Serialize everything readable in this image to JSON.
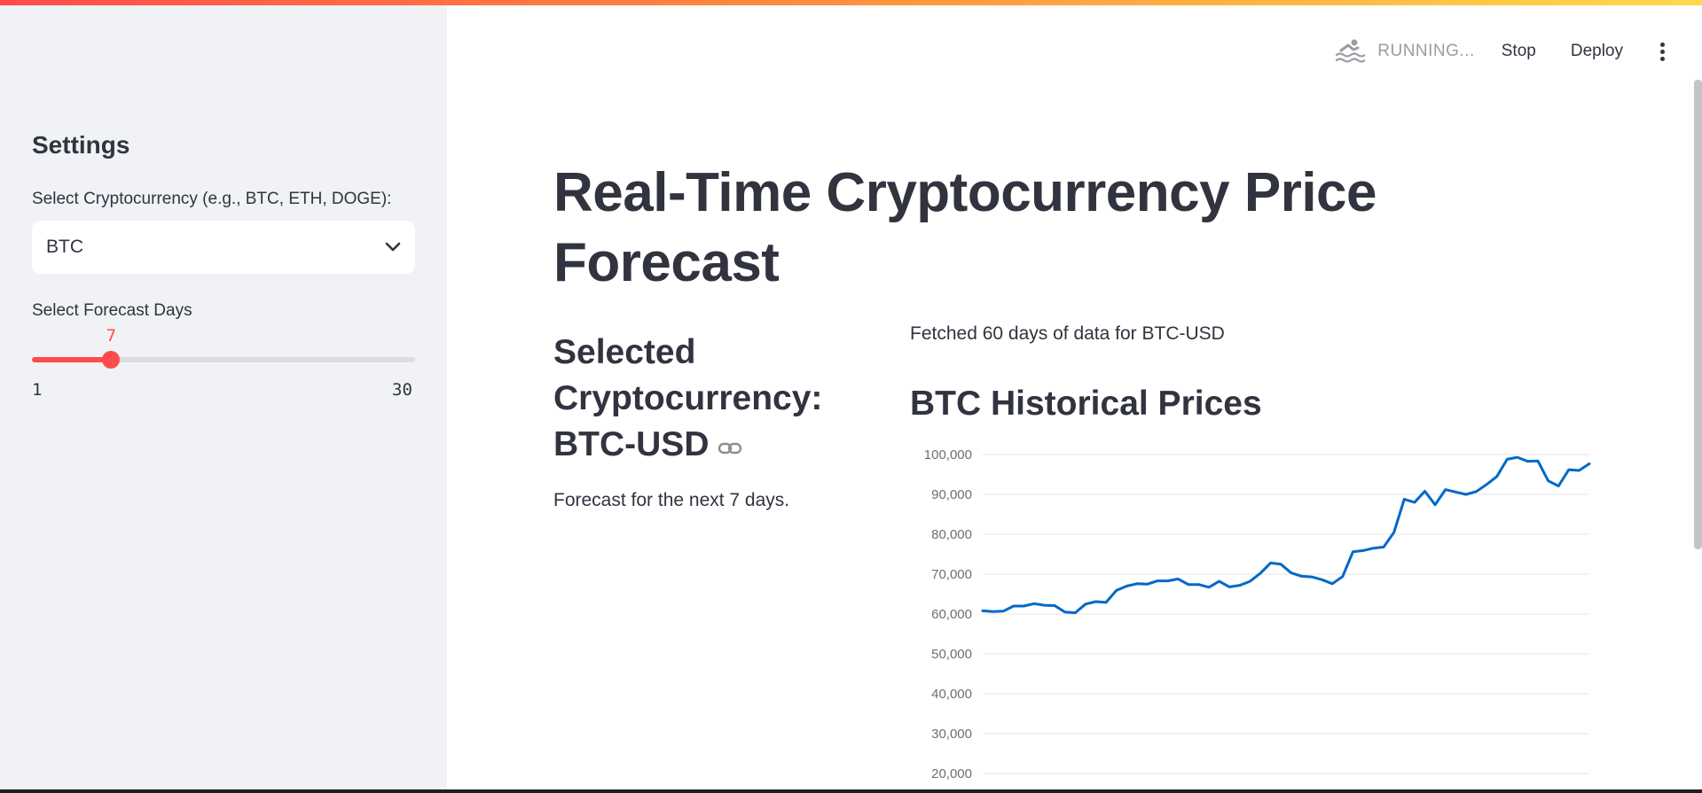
{
  "header": {
    "status": "RUNNING...",
    "stop_label": "Stop",
    "deploy_label": "Deploy",
    "menu_icon": "more-vertical-icon",
    "status_icon": "swimmer-icon"
  },
  "sidebar": {
    "title": "Settings",
    "crypto_label": "Select Cryptocurrency (e.g., BTC, ETH, DOGE):",
    "crypto_value": "BTC",
    "days_label": "Select Forecast Days",
    "slider": {
      "value": 7,
      "min": 1,
      "max": 30,
      "value_text": "7",
      "min_text": "1",
      "max_text": "30"
    }
  },
  "main": {
    "title": "Real-Time Cryptocurrency Price Forecast",
    "selected_heading": "Selected Cryptocurrency: BTC-USD",
    "forecast_text": "Forecast for the next 7 days.",
    "fetched_text": "Fetched 60 days of data for BTC-USD",
    "chart_title": "BTC Historical Prices"
  },
  "colors": {
    "accent": "#ff4b4b",
    "line": "#0068c9",
    "sidebar_bg": "#f0f2f6",
    "text": "#31333f"
  },
  "chart_data": {
    "type": "line",
    "title": "BTC Historical Prices",
    "xlabel": "",
    "ylabel": "",
    "ylim": [
      20000,
      100000
    ],
    "yticks": [
      20000,
      30000,
      40000,
      50000,
      60000,
      70000,
      80000,
      90000,
      100000
    ],
    "ytick_labels": [
      "20,000",
      "30,000",
      "40,000",
      "50,000",
      "60,000",
      "70,000",
      "80,000",
      "90,000",
      "100,000"
    ],
    "grid": true,
    "series": [
      {
        "values": [
          60800,
          60600,
          60700,
          62000,
          62000,
          62600,
          62200,
          62100,
          60500,
          60300,
          62500,
          63100,
          62900,
          65900,
          67000,
          67600,
          67500,
          68300,
          68300,
          68800,
          67400,
          67400,
          66700,
          68200,
          66800,
          67200,
          68200,
          70200,
          72800,
          72500,
          70300,
          69500,
          69300,
          68600,
          67600,
          69400,
          75600,
          75900,
          76500,
          76800,
          80500,
          88800,
          88000,
          90800,
          87400,
          91200,
          90600,
          90000,
          90700,
          92500,
          94500,
          98800,
          99300,
          98300,
          98400,
          93400,
          92100,
          96200,
          96000,
          97700
        ]
      }
    ]
  }
}
